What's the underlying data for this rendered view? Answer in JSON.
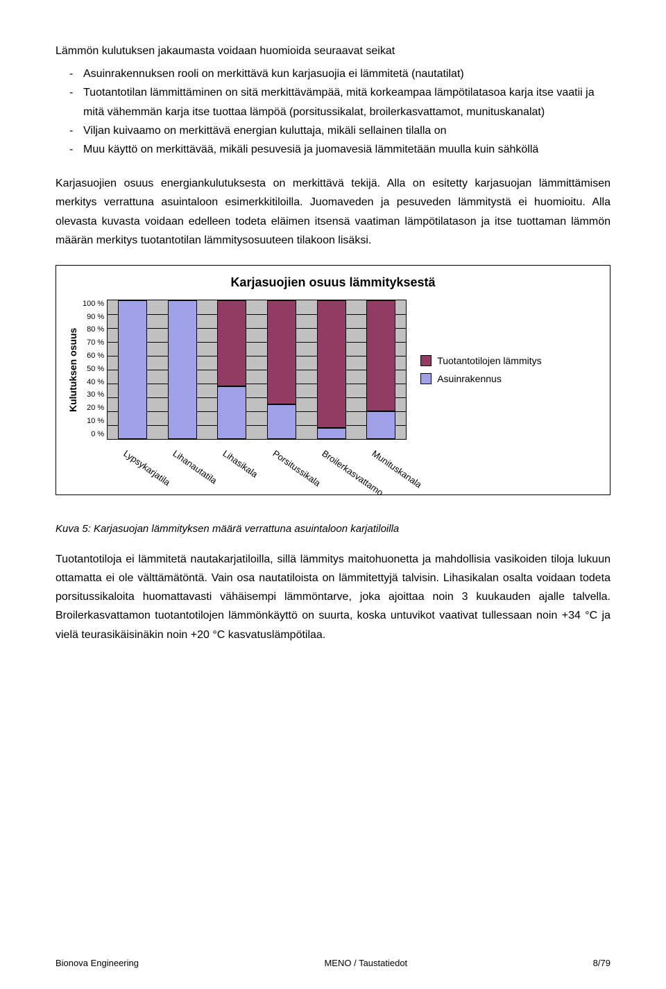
{
  "intro": "Lämmön kulutuksen jakaumasta voidaan huomioida seuraavat seikat",
  "bullets": [
    "Asuinrakennuksen rooli on merkittävä kun karjasuojia ei lämmitetä (nautatilat)",
    "Tuotantotilan lämmittäminen on sitä merkittävämpää, mitä korkeampaa lämpötilatasoa karja itse vaatii ja mitä vähemmän karja itse tuottaa lämpöä (porsitussikalat, broilerkasvattamot, munituskanalat)",
    "Viljan kuivaamo on merkittävä energian kuluttaja, mikäli sellainen tilalla on",
    "Muu käyttö on merkittävää, mikäli pesuvesiä ja juomavesiä lämmitetään muulla kuin sähköllä"
  ],
  "para2": "Karjasuojien osuus energiankulutuksesta on merkittävä tekijä. Alla on esitetty karjasuojan lämmittämisen merkitys verrattuna asuintaloon esimerkkitiloilla. Juomaveden ja pesuveden lämmitystä ei huomioitu. Alla olevasta kuvasta voidaan edelleen todeta eläimen itsensä vaatiman lämpötilatason ja itse tuottaman lämmön määrän merkitys tuotantotilan lämmitysosuuteen tilakoon lisäksi.",
  "chart": {
    "type": "stacked-bar",
    "title": "Karjasuojien osuus lämmityksestä",
    "ylabel": "Kulutuksen osuus",
    "yticks": [
      "100 %",
      "90 %",
      "80 %",
      "70 %",
      "60 %",
      "50 %",
      "40 %",
      "30 %",
      "20 %",
      "10 %",
      "0 %"
    ],
    "categories": [
      "Lypsykarjatila",
      "Lihanautatila",
      "Lihasikala",
      "Porsitussikala",
      "Broilerkasvattamo",
      "Munituskanala"
    ],
    "series": [
      {
        "name": "Tuotantotilojen lämmitys",
        "color": "#923b63"
      },
      {
        "name": "Asuinrakennus",
        "color": "#a0a0e8"
      }
    ],
    "values": {
      "asuin": [
        100,
        100,
        38,
        25,
        8,
        20
      ],
      "tuot": [
        0,
        0,
        62,
        75,
        92,
        80
      ]
    },
    "background": "#c0c0c0",
    "grid_color": "#000000"
  },
  "caption": "Kuva 5: Karjasuojan lämmityksen määrä verrattuna asuintaloon karjatiloilla",
  "para3": "Tuotantotiloja ei lämmitetä nautakarjatiloilla, sillä lämmitys maitohuonetta ja mahdollisia vasikoiden tiloja lukuun ottamatta ei ole välttämätöntä. Vain osa nautatiloista on lämmitettyjä talvisin. Lihasikalan osalta voidaan todeta porsitussikaloita huomattavasti vähäisempi lämmöntarve, joka ajoittaa noin 3 kuukauden ajalle talvella. Broilerkasvattamon tuotantotilojen lämmönkäyttö on suurta, koska untuvikot vaativat tullessaan noin +34 °C ja vielä teurasikäisinäkin noin +20 °C kasvatuslämpötilaa.",
  "footer": {
    "left": "Bionova Engineering",
    "center": "MENO / Taustatiedot",
    "right": "8/79"
  }
}
